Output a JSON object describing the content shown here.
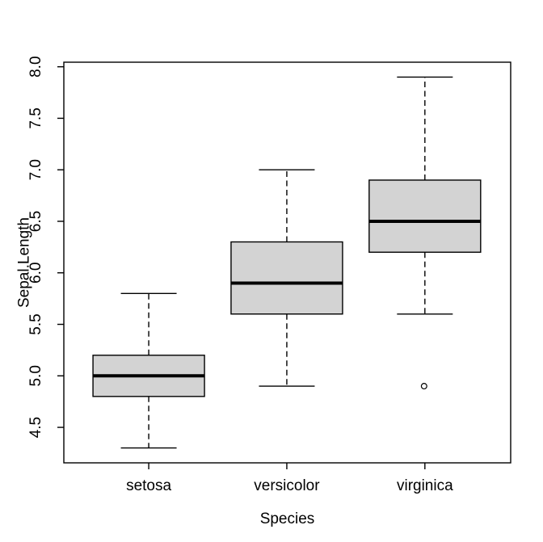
{
  "figure": {
    "background_color": "#ffffff",
    "box_fill_color": "#d3d3d3",
    "line_color": "#000000",
    "text_color": "#000000"
  },
  "chart_data": {
    "type": "boxplot",
    "title": "",
    "xlabel": "Species",
    "ylabel": "Sepal.Length",
    "categories": [
      "setosa",
      "versicolor",
      "virginica"
    ],
    "y_tick_values": [
      4.5,
      5.0,
      5.5,
      6.0,
      6.5,
      7.0,
      7.5,
      8.0
    ],
    "y_tick_labels": [
      "4.5",
      "5.0",
      "5.5",
      "6.0",
      "6.5",
      "7.0",
      "7.5",
      "8.0"
    ],
    "ylim": [
      4.1556,
      8.0444
    ],
    "grid": false,
    "legend": false,
    "series": [
      {
        "name": "setosa",
        "whisker_low": 4.3,
        "q1": 4.8,
        "median": 5.0,
        "q3": 5.2,
        "whisker_high": 5.8,
        "outliers": []
      },
      {
        "name": "versicolor",
        "whisker_low": 4.9,
        "q1": 5.6,
        "median": 5.9,
        "q3": 6.3,
        "whisker_high": 7.0,
        "outliers": []
      },
      {
        "name": "virginica",
        "whisker_low": 5.6,
        "q1": 6.2,
        "median": 6.5,
        "q3": 6.9,
        "whisker_high": 7.9,
        "outliers": [
          4.9
        ]
      }
    ]
  }
}
